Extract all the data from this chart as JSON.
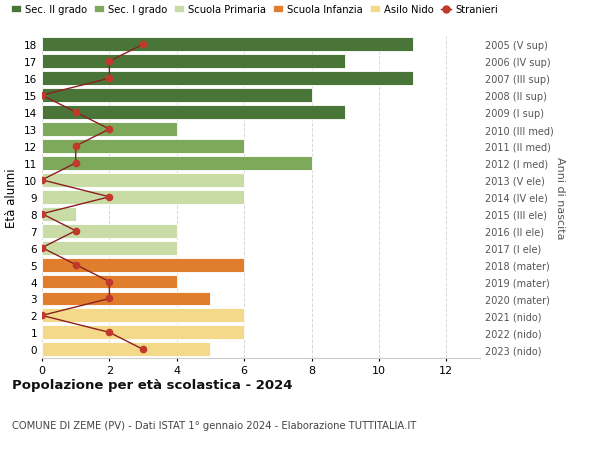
{
  "ages": [
    0,
    1,
    2,
    3,
    4,
    5,
    6,
    7,
    8,
    9,
    10,
    11,
    12,
    13,
    14,
    15,
    16,
    17,
    18
  ],
  "right_labels": [
    "2023 (nido)",
    "2022 (nido)",
    "2021 (nido)",
    "2020 (mater)",
    "2019 (mater)",
    "2018 (mater)",
    "2017 (I ele)",
    "2016 (II ele)",
    "2015 (III ele)",
    "2014 (IV ele)",
    "2013 (V ele)",
    "2012 (I med)",
    "2011 (II med)",
    "2010 (III med)",
    "2009 (I sup)",
    "2008 (II sup)",
    "2007 (III sup)",
    "2006 (IV sup)",
    "2005 (V sup)"
  ],
  "bar_values": [
    5,
    6,
    6,
    5,
    4,
    6,
    4,
    4,
    1,
    6,
    6,
    8,
    6,
    4,
    9,
    8,
    11,
    9,
    11
  ],
  "bar_colors": [
    "#f5d98b",
    "#f5d98b",
    "#f5d98b",
    "#e07e2e",
    "#e07e2e",
    "#e07e2e",
    "#c9dca5",
    "#c9dca5",
    "#c9dca5",
    "#c9dca5",
    "#c9dca5",
    "#7ea85a",
    "#7ea85a",
    "#7ea85a",
    "#4a7538",
    "#4a7538",
    "#4a7538",
    "#4a7538",
    "#4a7538"
  ],
  "stranieri_values": [
    3,
    2,
    0,
    2,
    2,
    1,
    0,
    1,
    0,
    2,
    0,
    1,
    1,
    2,
    1,
    0,
    2,
    2,
    3
  ],
  "title": "Popolazione per età scolastica - 2024",
  "subtitle": "COMUNE DI ZEME (PV) - Dati ISTAT 1° gennaio 2024 - Elaborazione TUTTITALIA.IT",
  "ylabel": "Età alunni",
  "right_ylabel": "Anni di nascita",
  "xlim": [
    0,
    13
  ],
  "xticks": [
    0,
    2,
    4,
    6,
    8,
    10,
    12
  ],
  "legend_labels": [
    "Sec. II grado",
    "Sec. I grado",
    "Scuola Primaria",
    "Scuola Infanzia",
    "Asilo Nido",
    "Stranieri"
  ],
  "legend_colors": [
    "#4a7538",
    "#7ea85a",
    "#c9dca5",
    "#e07e2e",
    "#f5d98b",
    "#c0392b"
  ],
  "bg_color": "#ffffff",
  "grid_color": "#d8d8d8",
  "bar_edgecolor": "#ffffff",
  "stranieri_line_color": "#8b2020",
  "stranieri_dot_color": "#c0392b"
}
